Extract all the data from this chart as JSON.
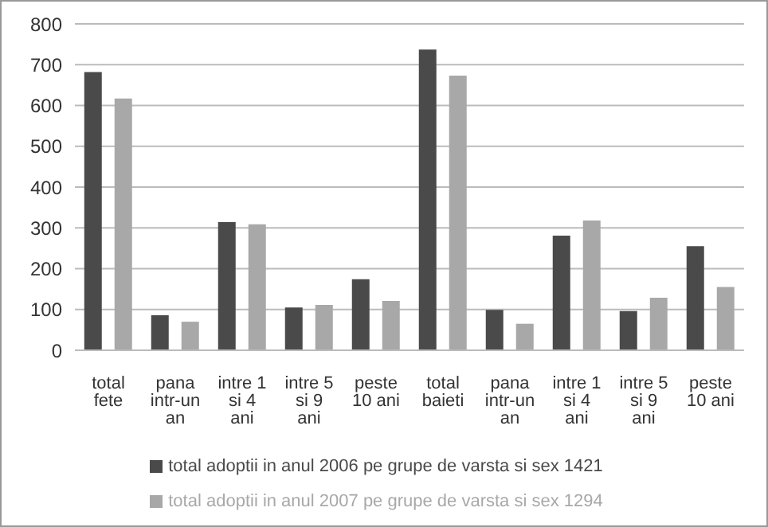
{
  "chart_data": {
    "type": "bar",
    "categories": [
      "total fete",
      "pana intr-un an",
      "intre 1 si 4 ani",
      "intre 5 si 9 ani",
      "peste 10 ani",
      "total baieti",
      "pana intr-un an",
      "intre 1 si 4 ani",
      "intre 5 si 9 ani",
      "peste 10 ani"
    ],
    "series": [
      {
        "name": "total adoptii in anul 2006 pe grupe de varsta si sex 1421",
        "color": "#4a4a4a",
        "values": [
          682,
          86,
          314,
          105,
          174,
          737,
          99,
          281,
          96,
          255
        ]
      },
      {
        "name": "total adoptii in anul 2007 pe grupe de varsta si sex 1294",
        "color": "#a8a8a8",
        "values": [
          617,
          70,
          309,
          111,
          121,
          673,
          65,
          318,
          129,
          155
        ]
      }
    ],
    "ylim": [
      0,
      800
    ],
    "yticks": [
      0,
      100,
      200,
      300,
      400,
      500,
      600,
      700,
      800
    ],
    "grid": "y",
    "legend": "bottom"
  }
}
